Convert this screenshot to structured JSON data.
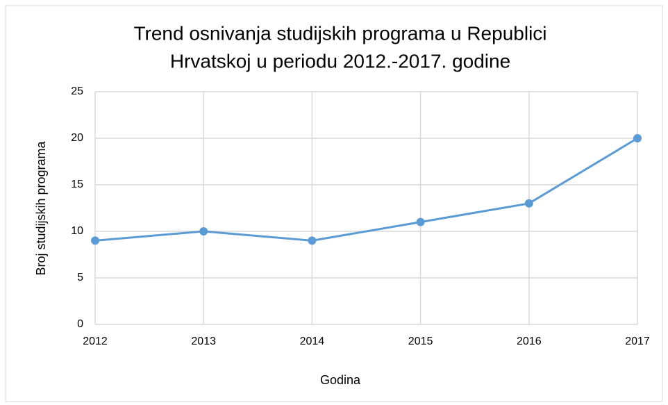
{
  "chart_data": {
    "type": "line",
    "title": [
      "Trend osnivanja studijskih programa u Republici",
      "Hrvatskoj u periodu 2012.-2017. godine"
    ],
    "x_label": "Godina",
    "y_label": "Broj studijskih programa",
    "x": [
      2012,
      2013,
      2014,
      2015,
      2016,
      2017
    ],
    "series": [
      {
        "name": "Broj studijskih programa",
        "color": "#5b9bd5",
        "values": [
          9,
          10,
          9,
          11,
          13,
          20
        ]
      }
    ],
    "xlim": [
      2012,
      2017
    ],
    "xticks": [
      2012,
      2013,
      2014,
      2015,
      2016,
      2017
    ],
    "ylim": [
      0,
      25
    ],
    "yticks": [
      0,
      5,
      10,
      15,
      20,
      25
    ],
    "grid": true
  }
}
